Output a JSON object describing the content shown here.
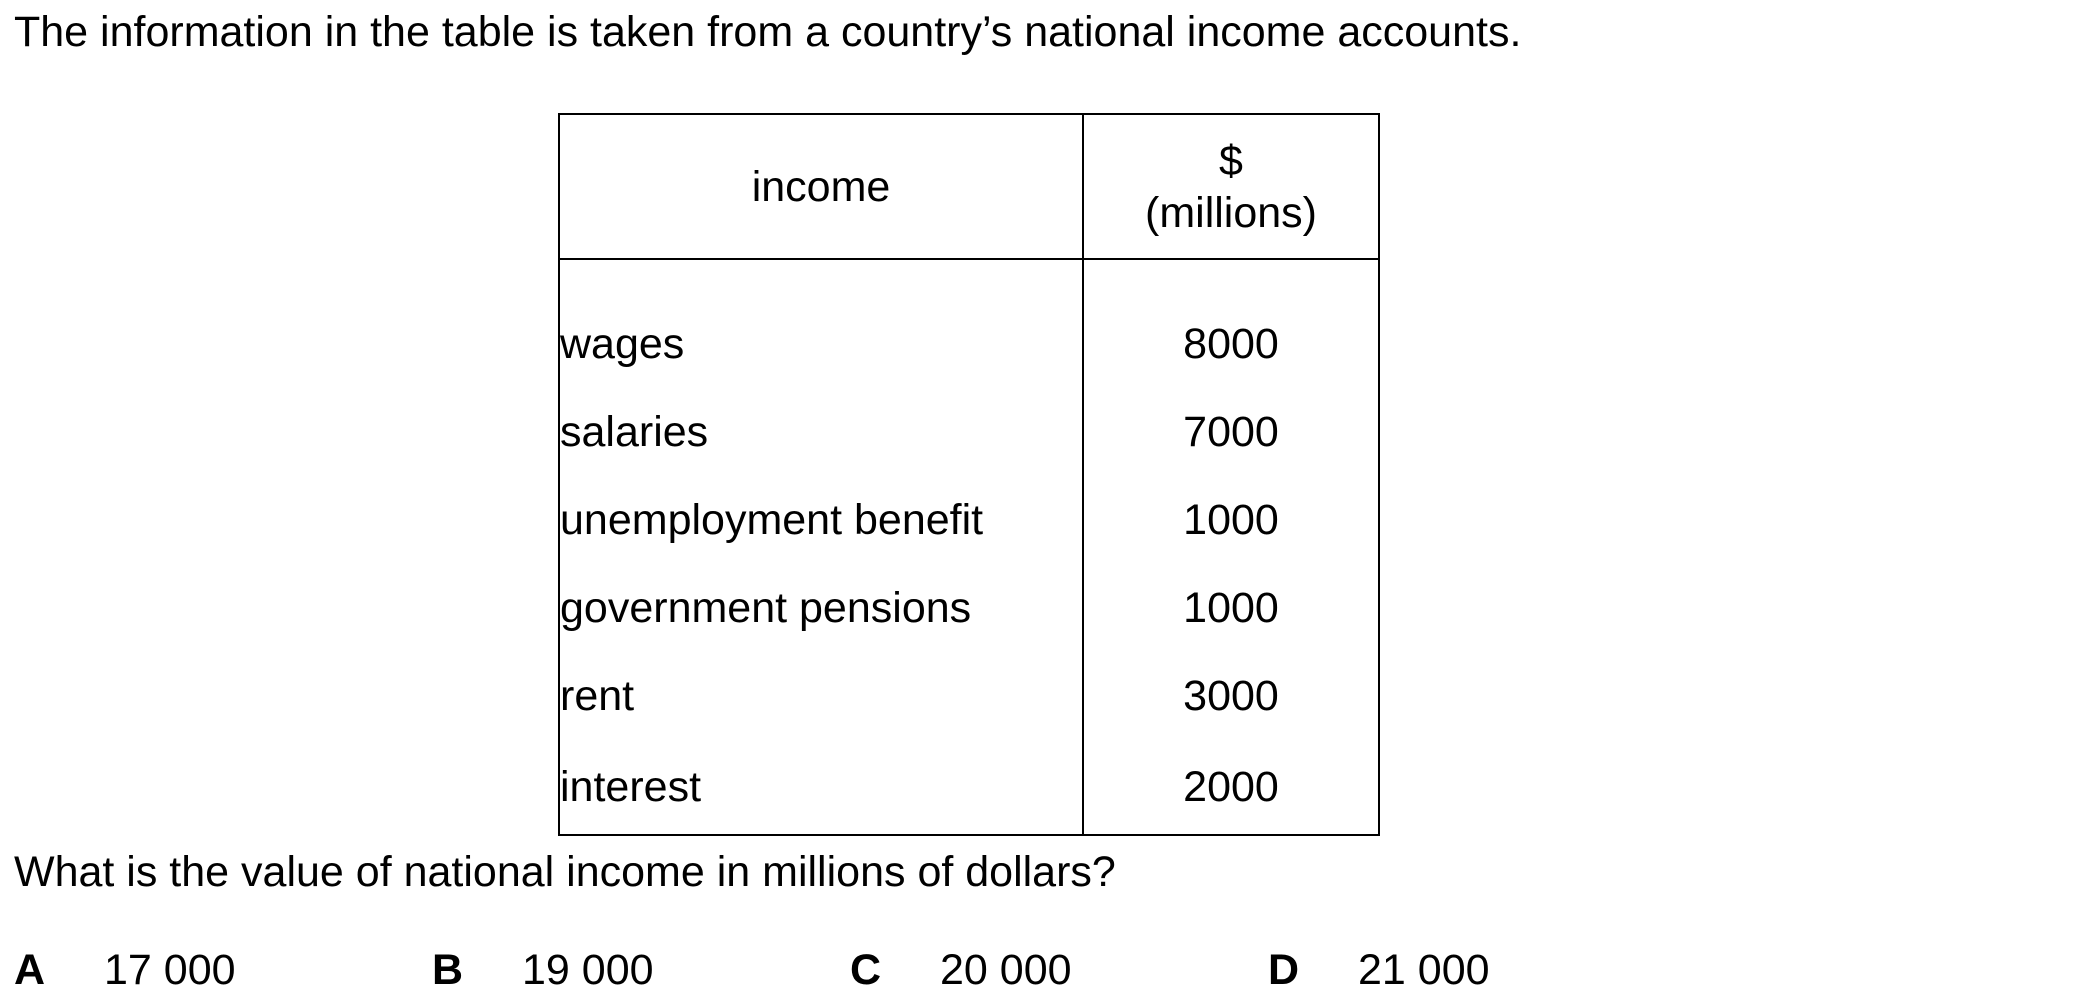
{
  "intro": "The information in the table is taken from a country’s national income accounts.",
  "table": {
    "header": {
      "income": "income",
      "amount_symbol": "$",
      "amount_unit": "(millions)"
    },
    "rows": [
      {
        "label": "wages",
        "value": "8000"
      },
      {
        "label": "salaries",
        "value": "7000"
      },
      {
        "label": "unemployment benefit",
        "value": "1000"
      },
      {
        "label": "government pensions",
        "value": "1000"
      },
      {
        "label": "rent",
        "value": "3000"
      },
      {
        "label": "interest",
        "value": "2000"
      }
    ]
  },
  "question": "What is the value of national income in millions of dollars?",
  "options": [
    {
      "letter": "A",
      "value": "17 000"
    },
    {
      "letter": "B",
      "value": "19 000"
    },
    {
      "letter": "C",
      "value": "20 000"
    },
    {
      "letter": "D",
      "value": "21 000"
    }
  ]
}
